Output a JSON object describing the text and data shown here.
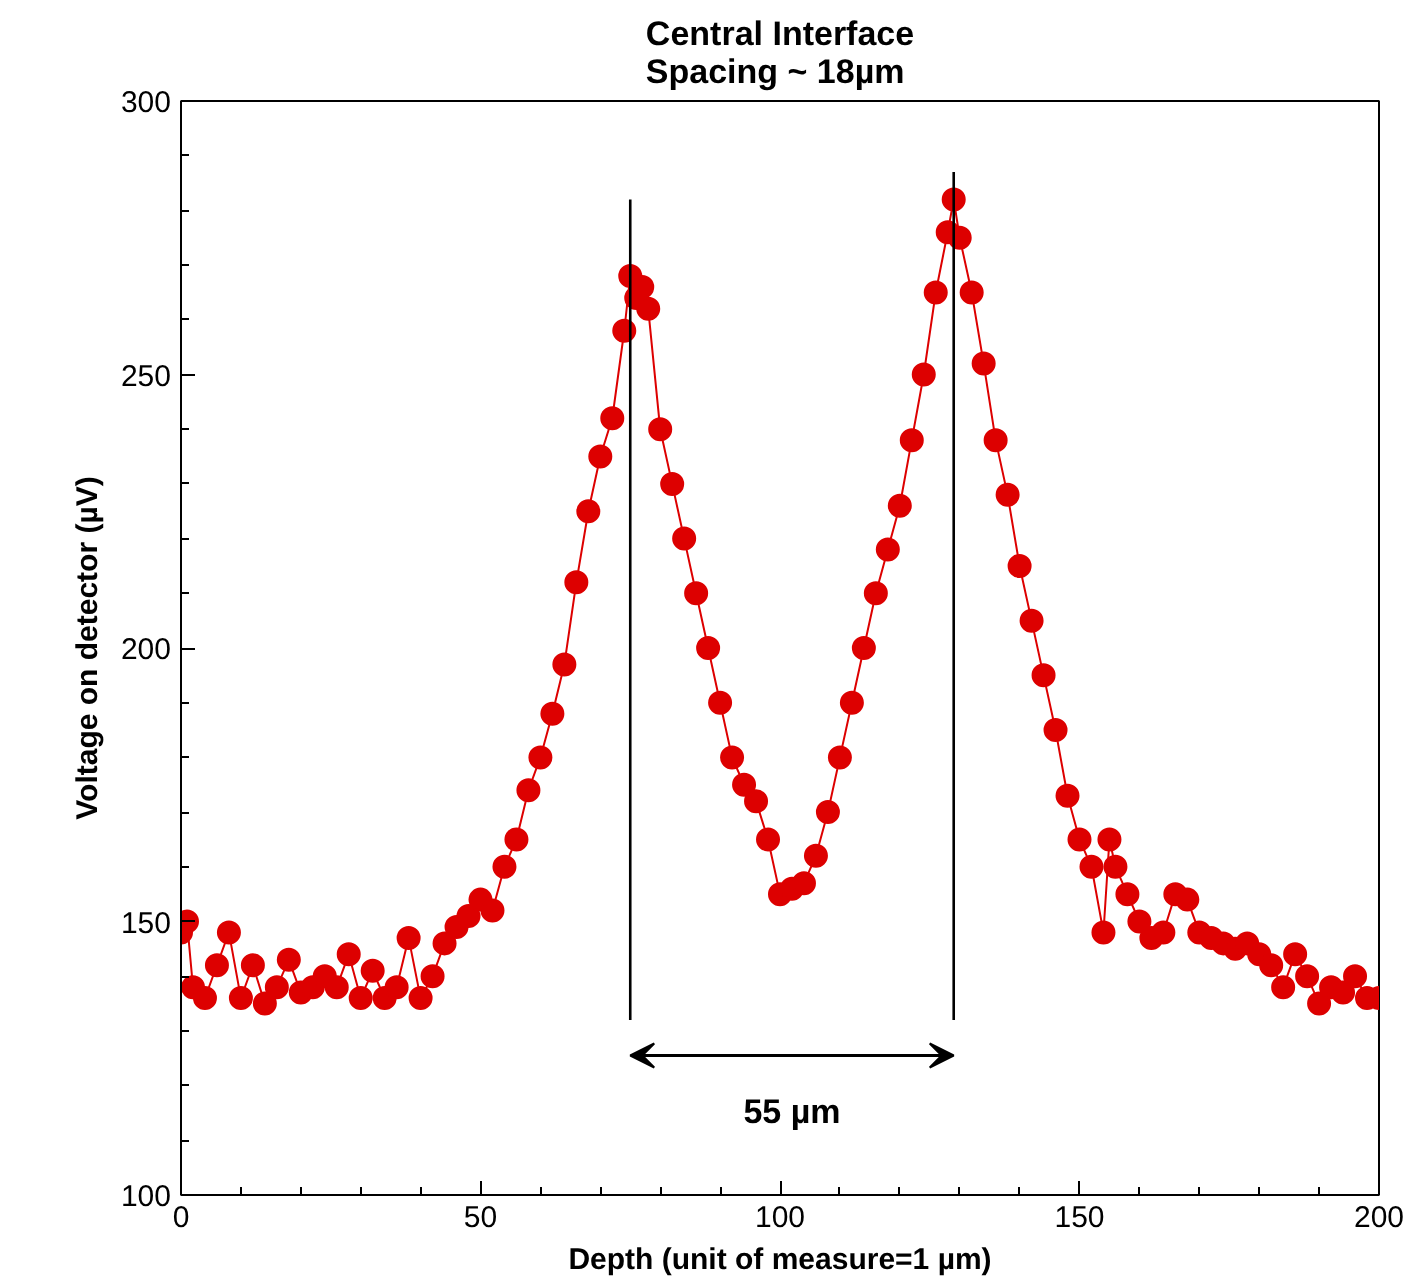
{
  "chart_data": {
    "type": "line",
    "title": "Central Interface\nSpacing ~ 18µm",
    "xlabel": "Depth (unit of measure=1 µm)",
    "ylabel": "Voltage on detector (µV)",
    "xlim": [
      0,
      200
    ],
    "ylim": [
      100,
      300
    ],
    "xticks": [
      0,
      50,
      100,
      150,
      200
    ],
    "yticks": [
      100,
      150,
      200,
      250,
      300
    ],
    "grid": false,
    "marker": "circle",
    "line_style": "solid",
    "series": [
      {
        "color": "#dd0000",
        "x": [
          0,
          1,
          2,
          4,
          6,
          8,
          10,
          12,
          14,
          16,
          18,
          20,
          22,
          24,
          26,
          28,
          30,
          32,
          34,
          36,
          38,
          40,
          42,
          44,
          46,
          48,
          50,
          52,
          54,
          56,
          58,
          60,
          62,
          64,
          66,
          68,
          70,
          72,
          74,
          75,
          76,
          77,
          78,
          80,
          82,
          84,
          86,
          88,
          90,
          92,
          94,
          96,
          98,
          100,
          102,
          104,
          106,
          108,
          110,
          112,
          114,
          116,
          118,
          120,
          122,
          124,
          126,
          128,
          129,
          130,
          132,
          134,
          136,
          138,
          140,
          142,
          144,
          146,
          148,
          150,
          152,
          154,
          155,
          156,
          158,
          160,
          162,
          164,
          166,
          168,
          170,
          172,
          174,
          176,
          178,
          180,
          182,
          184,
          186,
          188,
          190,
          192,
          194,
          196,
          198,
          200
        ],
        "values": [
          148,
          150,
          138,
          136,
          142,
          148,
          136,
          142,
          135,
          138,
          143,
          137,
          138,
          140,
          138,
          144,
          136,
          141,
          136,
          138,
          147,
          136,
          140,
          146,
          149,
          151,
          154,
          152,
          160,
          165,
          174,
          180,
          188,
          197,
          212,
          225,
          235,
          242,
          258,
          268,
          264,
          266,
          262,
          240,
          230,
          220,
          210,
          200,
          190,
          180,
          175,
          172,
          165,
          155,
          156,
          157,
          162,
          170,
          180,
          190,
          200,
          210,
          218,
          226,
          238,
          250,
          265,
          276,
          282,
          275,
          265,
          252,
          238,
          228,
          215,
          205,
          195,
          185,
          173,
          165,
          160,
          148,
          165,
          160,
          155,
          150,
          147,
          148,
          155,
          154,
          148,
          147,
          146,
          145,
          146,
          144,
          142,
          138,
          144,
          140,
          135,
          138,
          137,
          140,
          136,
          136
        ]
      },
      {
        "type": "line",
        "color": "#000000",
        "marker": "none",
        "x": [
          75,
          75
        ],
        "values": [
          132,
          282
        ]
      },
      {
        "type": "line",
        "color": "#000000",
        "marker": "none",
        "x": [
          129,
          129
        ],
        "values": [
          132,
          287
        ]
      }
    ],
    "annotations": [
      "55 µm"
    ]
  }
}
